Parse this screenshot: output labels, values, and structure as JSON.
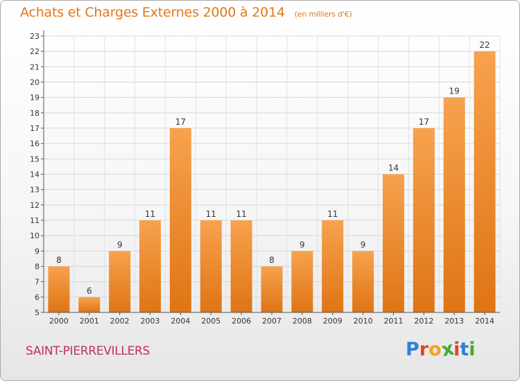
{
  "chart_data": {
    "type": "bar",
    "title": "Achats et Charges Externes 2000 à 2014",
    "subtitle": "(en milliers d'€)",
    "categories": [
      "2000",
      "2001",
      "2002",
      "2003",
      "2004",
      "2005",
      "2006",
      "2007",
      "2008",
      "2009",
      "2010",
      "2011",
      "2012",
      "2013",
      "2014"
    ],
    "values": [
      8,
      6,
      9,
      11,
      17,
      11,
      11,
      8,
      9,
      11,
      9,
      14,
      17,
      19,
      22
    ],
    "ylim": [
      5,
      23
    ],
    "yticks": [
      5,
      6,
      7,
      8,
      9,
      10,
      11,
      12,
      13,
      14,
      15,
      16,
      17,
      18,
      19,
      20,
      21,
      22,
      23
    ],
    "grid": true,
    "bar_color": "#f0892a",
    "xlabel": "",
    "ylabel": ""
  },
  "footer": {
    "town": "SAINT-PIERREVILLERS",
    "logo": "Proxiti"
  },
  "colors": {
    "title": "#e07818",
    "town": "#c0305a",
    "logo": [
      "#2f7fd6",
      "#e0471f",
      "#f5a21a",
      "#49a835",
      "#e0471f",
      "#2f7fd6",
      "#49a835"
    ]
  }
}
